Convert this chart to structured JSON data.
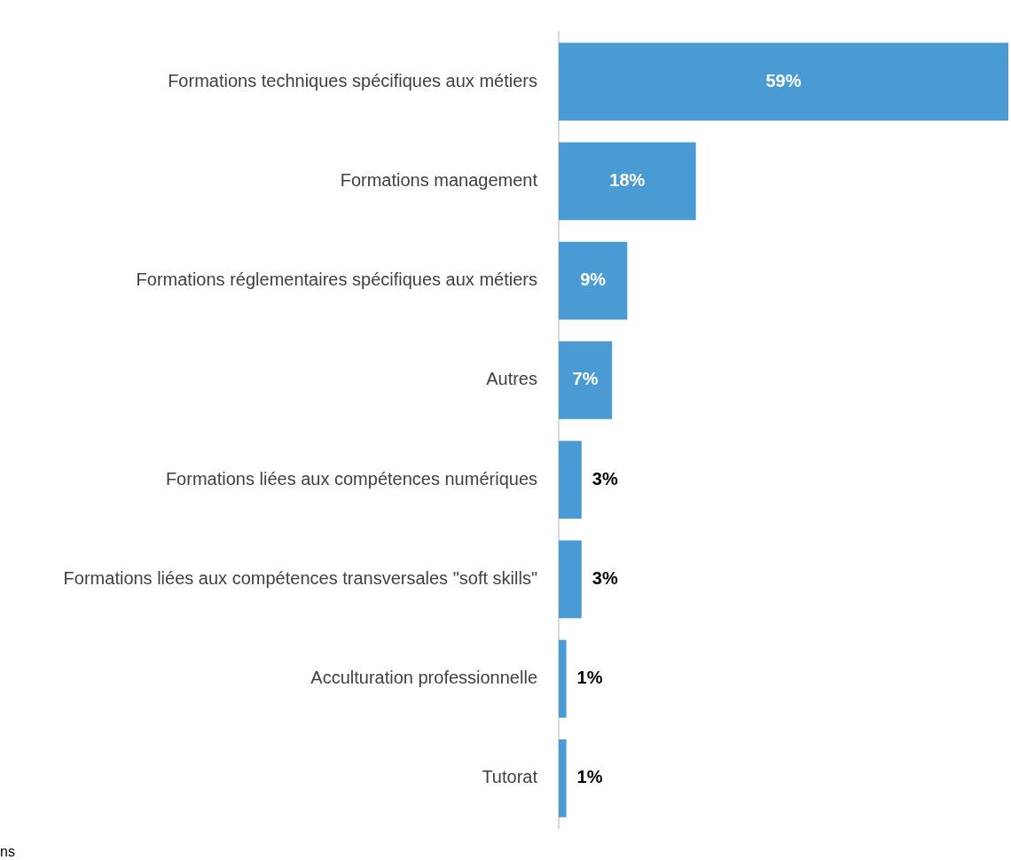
{
  "chart_data": {
    "type": "bar",
    "orientation": "horizontal",
    "categories": [
      "Formations techniques spécifiques aux métiers",
      "Formations management",
      "Formations réglementaires spécifiques aux métiers",
      "Autres",
      "Formations liées aux compétences numériques",
      "Formations liées aux compétences transversales \"soft skills\"",
      "Acculturation professionnelle",
      "Tutorat"
    ],
    "values": [
      59,
      18,
      9,
      7,
      3,
      3,
      1,
      1
    ],
    "value_labels": [
      "59%",
      "18%",
      "9%",
      "7%",
      "3%",
      "3%",
      "1%",
      "1%"
    ],
    "color": "#4a9bd3",
    "grid": false,
    "legend": false,
    "tick_labels": "y",
    "annotations": [
      "ns"
    ]
  }
}
